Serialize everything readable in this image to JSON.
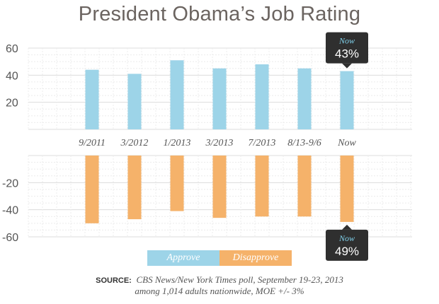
{
  "chart_data": {
    "type": "bar",
    "title": "President Obama’s Job Rating",
    "categories": [
      "9/2011",
      "3/2012",
      "1/2013",
      "3/2013",
      "7/2013",
      "8/13-9/6",
      "Now"
    ],
    "series": [
      {
        "name": "Approve",
        "values": [
          44,
          41,
          51,
          45,
          48,
          45,
          43
        ],
        "color": "#9dd4e8"
      },
      {
        "name": "Disapprove",
        "values": [
          -50,
          -47,
          -41,
          -46,
          -45,
          -45,
          -49
        ],
        "color": "#f5b26a"
      }
    ],
    "upper_ylim": [
      0,
      60
    ],
    "upper_yticks": [
      "20",
      "40",
      "60"
    ],
    "lower_ylim": [
      -60,
      0
    ],
    "lower_yticks": [
      "-20",
      "-40",
      "-60"
    ],
    "grid": true,
    "callouts": [
      {
        "series": "Approve",
        "category": "Now",
        "label": "Now",
        "value": "43%"
      },
      {
        "series": "Disapprove",
        "category": "Now",
        "label": "Now",
        "value": "49%"
      }
    ]
  },
  "legend": {
    "approve": "Approve",
    "disapprove": "Disapprove"
  },
  "source": {
    "label": "SOURCE:",
    "line1": "CBS News/New York Times poll, September 19-23, 2013",
    "line2": "among 1,014 adults nationwide, MOE +/- 3%"
  },
  "colors": {
    "approve": "#9dd4e8",
    "disapprove": "#f5b26a",
    "callout": "#2f2f2f",
    "callout_label": "#7fd0ea"
  }
}
